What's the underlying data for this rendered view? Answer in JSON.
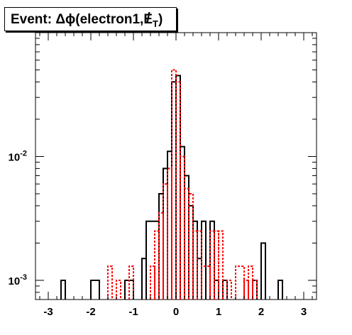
{
  "title": "Event: Δϕ(electron1,",
  "title_symbol": "E",
  "title_subscript": "T",
  "title_close": ")",
  "chart_data": {
    "type": "histogram",
    "title": "Event: Δϕ(electron1,E_T)",
    "xlabel": "",
    "ylabel": "",
    "x_range": [
      -3.3,
      3.3
    ],
    "y_range": [
      0.0007,
      0.1
    ],
    "y_log": true,
    "bin_width": 0.1,
    "x_ticks": [
      "-3",
      "-2",
      "-1",
      "0",
      "1",
      "2",
      "3"
    ],
    "x_tick_values": [
      -3,
      -2,
      -1,
      0,
      1,
      2,
      3
    ],
    "y_ticks": [
      "10^-3",
      "10^-2"
    ],
    "y_tick_values": [
      0.001,
      0.01
    ],
    "grid": false,
    "legend": "none",
    "series": [
      {
        "color": "#000000",
        "style": "solid",
        "bins": [
          {
            "x0": -2.7,
            "x1": -2.6,
            "y": 0.001
          },
          {
            "x0": -2.0,
            "x1": -1.8,
            "y": 0.001
          },
          {
            "x0": -1.2,
            "x1": -1.0,
            "y": 0.001
          },
          {
            "x0": -0.8,
            "x1": -0.7,
            "y": 0.0015
          },
          {
            "x0": -0.7,
            "x1": -0.4,
            "y": 0.003
          },
          {
            "x0": -0.4,
            "x1": -0.3,
            "y": 0.005
          },
          {
            "x0": -0.3,
            "x1": -0.2,
            "y": 0.008
          },
          {
            "x0": -0.2,
            "x1": -0.1,
            "y": 0.011
          },
          {
            "x0": -0.1,
            "x1": 0.0,
            "y": 0.04
          },
          {
            "x0": 0.0,
            "x1": 0.1,
            "y": 0.045
          },
          {
            "x0": 0.1,
            "x1": 0.2,
            "y": 0.012
          },
          {
            "x0": 0.2,
            "x1": 0.3,
            "y": 0.007
          },
          {
            "x0": 0.3,
            "x1": 0.4,
            "y": 0.004
          },
          {
            "x0": 0.4,
            "x1": 0.5,
            "y": 0.003
          },
          {
            "x0": 0.5,
            "x1": 0.6,
            "y": 0.0015
          },
          {
            "x0": 0.6,
            "x1": 0.7,
            "y": 0.003
          },
          {
            "x0": 0.8,
            "x1": 0.9,
            "y": 0.003
          },
          {
            "x0": 0.9,
            "x1": 1.0,
            "y": 0.001
          },
          {
            "x0": 1.1,
            "x1": 1.2,
            "y": 0.001
          },
          {
            "x0": 1.8,
            "x1": 1.9,
            "y": 0.001
          },
          {
            "x0": 2.0,
            "x1": 2.1,
            "y": 0.002
          },
          {
            "x0": 2.4,
            "x1": 2.5,
            "y": 0.001
          }
        ]
      },
      {
        "color": "#ff0000",
        "style": "dashed",
        "bins": [
          {
            "x0": -1.6,
            "x1": -1.5,
            "y": 0.0013
          },
          {
            "x0": -1.4,
            "x1": -1.3,
            "y": 0.001
          },
          {
            "x0": -1.1,
            "x1": -1.0,
            "y": 0.0013
          },
          {
            "x0": -0.6,
            "x1": -0.5,
            "y": 0.0013
          },
          {
            "x0": -0.5,
            "x1": -0.4,
            "y": 0.0025
          },
          {
            "x0": -0.4,
            "x1": -0.3,
            "y": 0.0035
          },
          {
            "x0": -0.3,
            "x1": -0.2,
            "y": 0.006
          },
          {
            "x0": -0.2,
            "x1": -0.1,
            "y": 0.008
          },
          {
            "x0": -0.1,
            "x1": 0.0,
            "y": 0.05
          },
          {
            "x0": 0.0,
            "x1": 0.1,
            "y": 0.04
          },
          {
            "x0": 0.1,
            "x1": 0.2,
            "y": 0.01
          },
          {
            "x0": 0.2,
            "x1": 0.3,
            "y": 0.0055
          },
          {
            "x0": 0.3,
            "x1": 0.4,
            "y": 0.005
          },
          {
            "x0": 0.4,
            "x1": 0.5,
            "y": 0.0025
          },
          {
            "x0": 0.5,
            "x1": 0.6,
            "y": 0.0025
          },
          {
            "x0": 0.6,
            "x1": 0.8,
            "y": 0.0013
          },
          {
            "x0": 0.8,
            "x1": 0.9,
            "y": 0.0025
          },
          {
            "x0": 0.9,
            "x1": 1.0,
            "y": 0.0025
          },
          {
            "x0": 1.0,
            "x1": 1.1,
            "y": 0.0025
          },
          {
            "x0": 1.2,
            "x1": 1.3,
            "y": 0.001
          },
          {
            "x0": 1.4,
            "x1": 1.6,
            "y": 0.0013
          },
          {
            "x0": 1.6,
            "x1": 1.7,
            "y": 0.001
          },
          {
            "x0": 1.7,
            "x1": 1.8,
            "y": 0.0013
          },
          {
            "x0": 1.8,
            "x1": 1.9,
            "y": 0.001
          }
        ]
      }
    ]
  }
}
